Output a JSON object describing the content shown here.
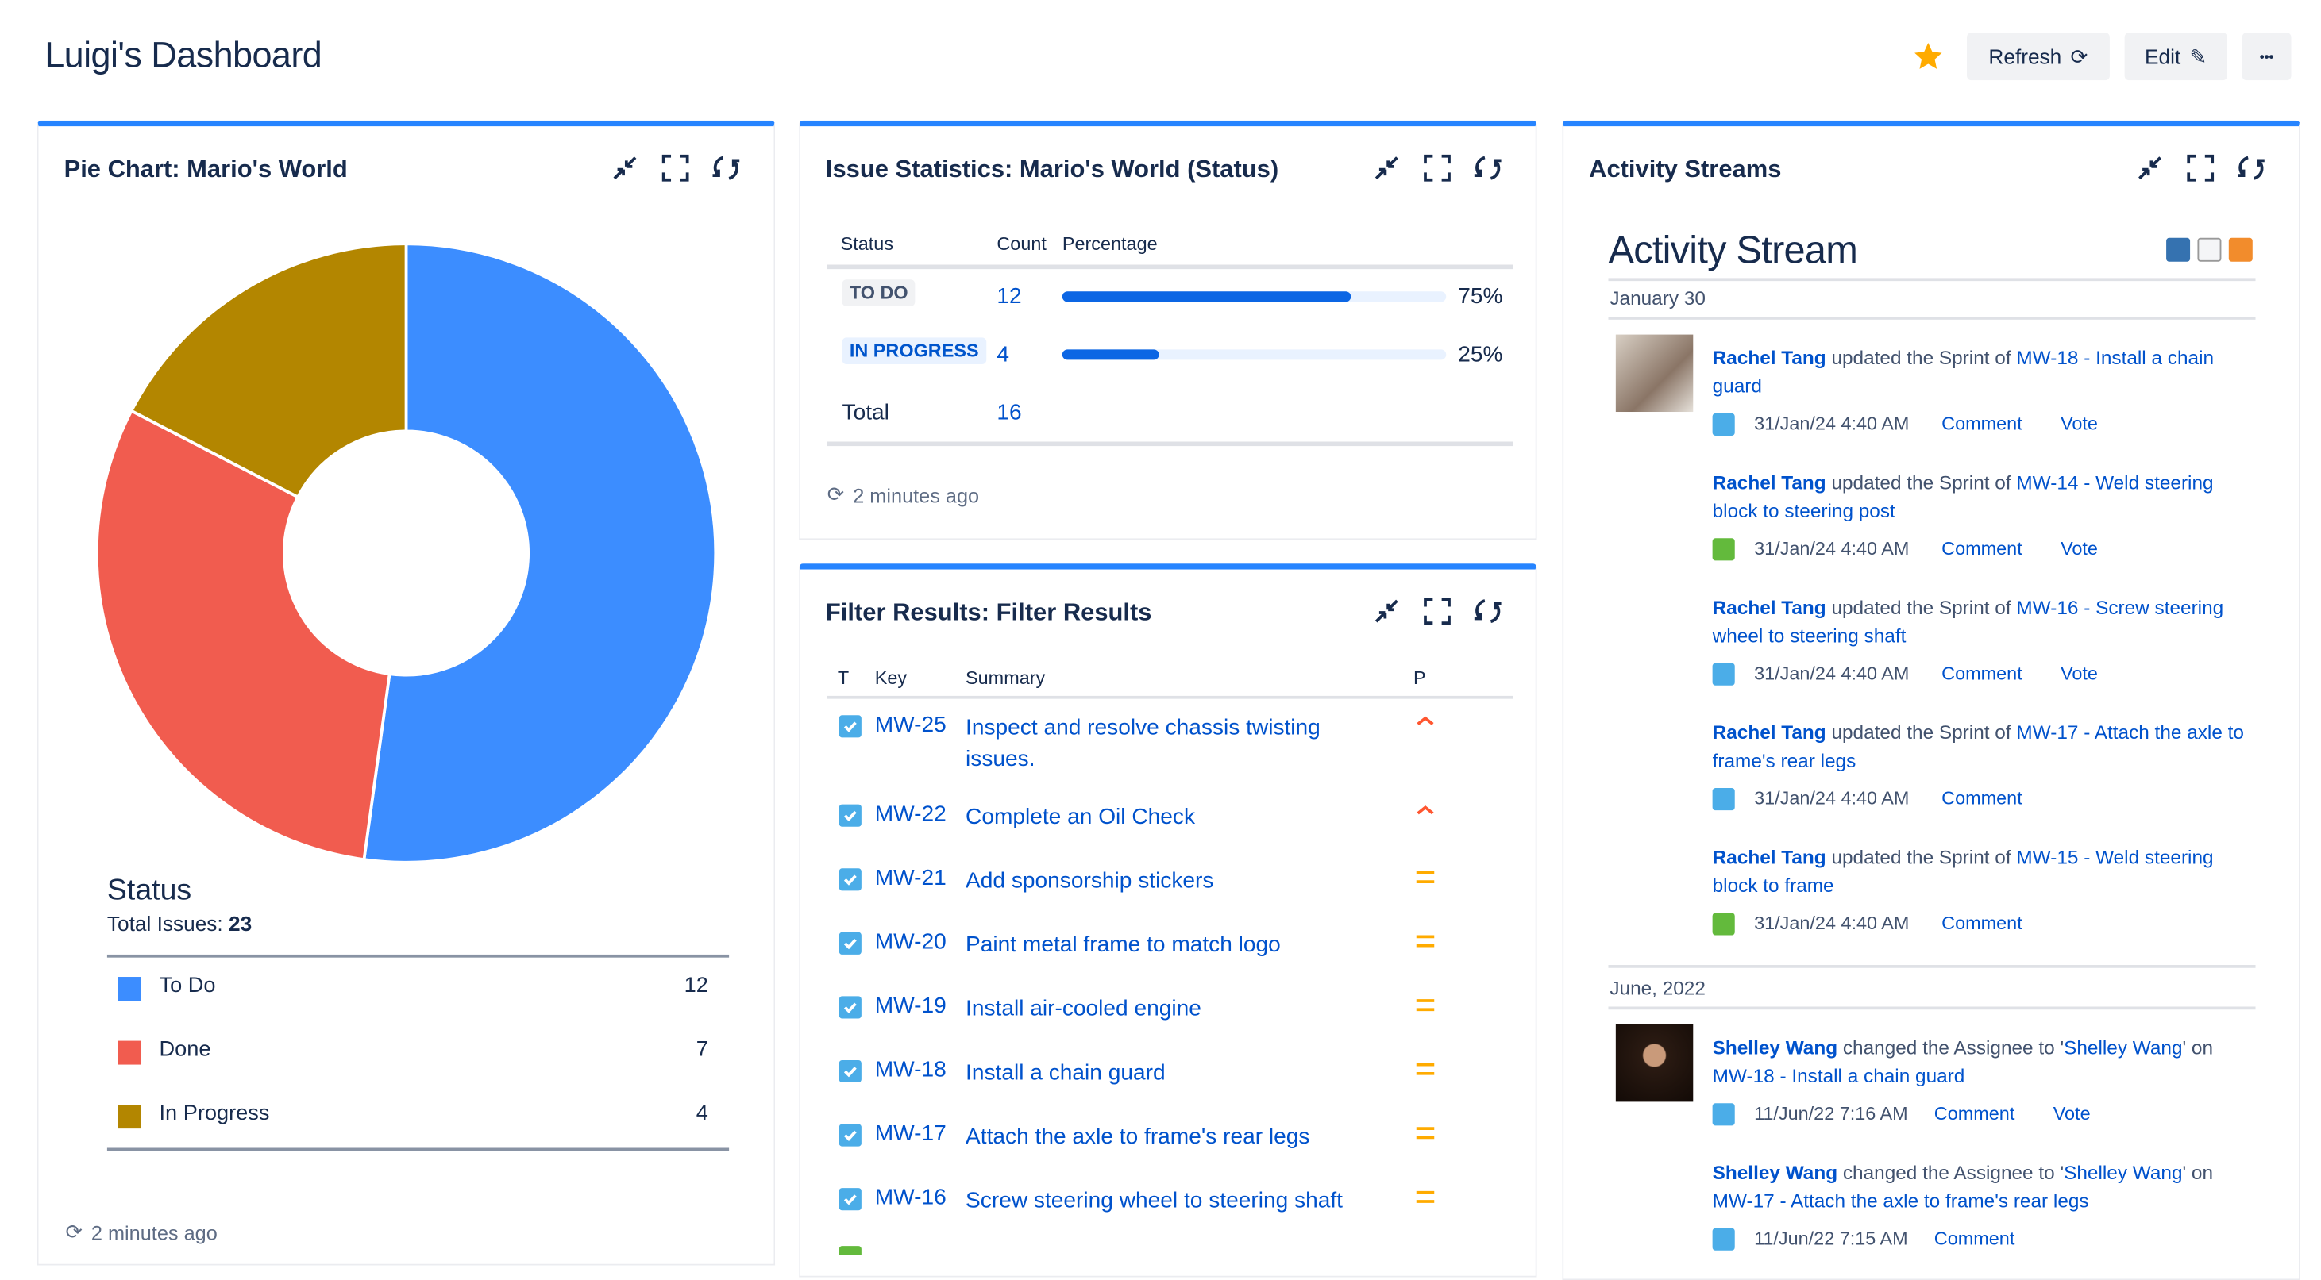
{
  "header": {
    "title": "Luigi's Dashboard",
    "refresh_label": "Refresh",
    "edit_label": "Edit",
    "more_label": "•••"
  },
  "colors": {
    "accent": "#2684ff",
    "link": "#0052cc",
    "todo": "#3c8dff",
    "done": "#f15c4f",
    "in_progress": "#b38600",
    "star": "#ffab00"
  },
  "pie_panel": {
    "title": "Pie Chart: Mario's World",
    "legend_title": "Status",
    "total_label": "Total Issues:",
    "total_value": "23",
    "updated": "2 minutes ago"
  },
  "chart_data": {
    "type": "pie",
    "donut": true,
    "categories": [
      "To Do",
      "Done",
      "In Progress"
    ],
    "values": [
      12,
      7,
      4
    ],
    "colors": [
      "#3c8dff",
      "#f15c4f",
      "#b38600"
    ]
  },
  "stats_panel": {
    "title": "Issue Statistics: Mario's World (Status)",
    "headers": [
      "Status",
      "Count",
      "Percentage"
    ],
    "rows": [
      {
        "status": "TO DO",
        "count": "12",
        "percent": 75,
        "percent_label": "75%"
      },
      {
        "status": "IN PROGRESS",
        "count": "4",
        "percent": 25,
        "percent_label": "25%"
      }
    ],
    "total_label": "Total",
    "total_value": "16",
    "updated": "2 minutes ago"
  },
  "filter_panel": {
    "title": "Filter Results: Filter Results",
    "headers": [
      "T",
      "Key",
      "Summary",
      "P"
    ],
    "rows": [
      {
        "key": "MW-25",
        "summary": "Inspect and resolve chassis twisting issues.",
        "priority": "high"
      },
      {
        "key": "MW-22",
        "summary": "Complete an Oil Check",
        "priority": "high"
      },
      {
        "key": "MW-21",
        "summary": "Add sponsorship stickers",
        "priority": "medium"
      },
      {
        "key": "MW-20",
        "summary": "Paint metal frame to match logo",
        "priority": "medium"
      },
      {
        "key": "MW-19",
        "summary": "Install air-cooled engine",
        "priority": "medium"
      },
      {
        "key": "MW-18",
        "summary": "Install a chain guard",
        "priority": "medium"
      },
      {
        "key": "MW-17",
        "summary": "Attach the axle to frame's rear legs",
        "priority": "medium"
      },
      {
        "key": "MW-16",
        "summary": "Screw steering wheel to steering shaft",
        "priority": "medium"
      }
    ]
  },
  "activity_panel": {
    "title": "Activity Streams",
    "stream_title": "Activity Stream",
    "groups": [
      {
        "date": "January 30",
        "events": [
          {
            "user": "Rachel Tang",
            "action": " updated the Sprint of ",
            "target": "MW-18 - Install a chain guard",
            "time": "31/Jan/24 4:40 AM",
            "type": "task",
            "actions": [
              "Comment",
              "Vote"
            ]
          },
          {
            "user": "Rachel Tang",
            "action": " updated the Sprint of ",
            "target": "MW-14 - Weld steering block to steering post",
            "time": "31/Jan/24 4:40 AM",
            "type": "story",
            "actions": [
              "Comment",
              "Vote"
            ]
          },
          {
            "user": "Rachel Tang",
            "action": " updated the Sprint of ",
            "target": "MW-16 - Screw steering wheel to steering shaft",
            "time": "31/Jan/24 4:40 AM",
            "type": "task",
            "actions": [
              "Comment",
              "Vote"
            ]
          },
          {
            "user": "Rachel Tang",
            "action": " updated the Sprint of ",
            "target": "MW-17 - Attach the axle to frame's rear legs",
            "time": "31/Jan/24 4:40 AM",
            "type": "task",
            "actions": [
              "Comment"
            ]
          },
          {
            "user": "Rachel Tang",
            "action": " updated the Sprint of ",
            "target": "MW-15 - Weld steering block to frame",
            "time": "31/Jan/24 4:40 AM",
            "type": "story",
            "actions": [
              "Comment"
            ]
          }
        ]
      },
      {
        "date": "June, 2022",
        "events": [
          {
            "user": "Shelley Wang",
            "action": " changed the Assignee to '",
            "assignee": "Shelley Wang",
            "suffix": "' on ",
            "target": "MW-18 - Install a chain guard",
            "time": "11/Jun/22 7:16 AM",
            "type": "task",
            "actions": [
              "Comment",
              "Vote"
            ]
          },
          {
            "user": "Shelley Wang",
            "action": " changed the Assignee to '",
            "assignee": "Shelley Wang",
            "suffix": "' on ",
            "target": "MW-17 - Attach the axle to frame's rear legs",
            "time": "11/Jun/22 7:15 AM",
            "type": "task",
            "actions": [
              "Comment"
            ]
          }
        ]
      }
    ]
  }
}
